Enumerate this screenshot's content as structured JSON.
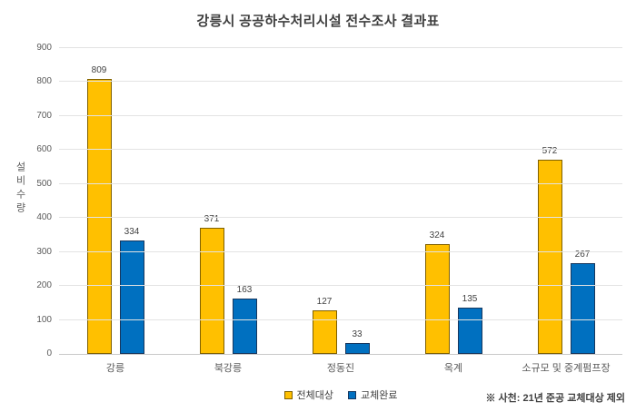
{
  "chart_data": {
    "type": "bar",
    "title": "강릉시 공공하수처리시설 전수조사 결과표",
    "ylabel": "설비수량",
    "xlabel": "",
    "categories": [
      "강릉",
      "북강릉",
      "정동진",
      "옥계",
      "소규모 및 중계펌프장"
    ],
    "series": [
      {
        "name": "전체대상",
        "color": "#FFC000",
        "border_color": "#7F6000",
        "values": [
          809,
          371,
          127,
          324,
          572
        ]
      },
      {
        "name": "교체완료",
        "color": "#0070C0",
        "border_color": "#17375E",
        "values": [
          334,
          163,
          33,
          135,
          267
        ]
      }
    ],
    "ylim": [
      0,
      900
    ],
    "yticks": [
      0,
      100,
      200,
      300,
      400,
      500,
      600,
      700,
      800,
      900
    ],
    "grid": true,
    "legend_position": "bottom"
  },
  "footnote": "※ 사천: 21년 준공 교체대상 제외"
}
